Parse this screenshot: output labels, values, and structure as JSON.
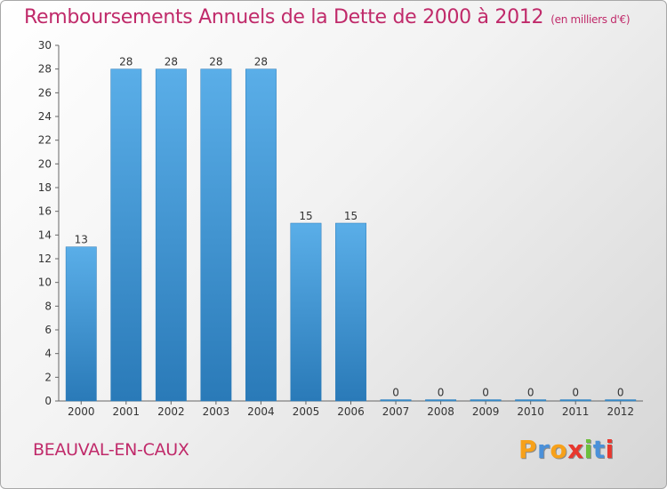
{
  "title": "Remboursements Annuels de la Dette de 2000 à 2012",
  "unit_note": "(en milliers d'€)",
  "commune": "BEAUVAL-EN-CAUX",
  "logo": {
    "text": "Proxiti",
    "letter_colors": [
      "#f7a11a",
      "#4a90d9",
      "#f7a11a",
      "#e8372e",
      "#6cbf3c",
      "#4a90d9",
      "#e8372e"
    ]
  },
  "colors": {
    "bar_top": "#5aaee8",
    "bar_bottom": "#2a7ab8",
    "accent": "#c02a6a"
  },
  "chart_data": {
    "type": "bar",
    "categories": [
      "2000",
      "2001",
      "2002",
      "2003",
      "2004",
      "2005",
      "2006",
      "2007",
      "2008",
      "2009",
      "2010",
      "2011",
      "2012"
    ],
    "values": [
      13,
      28,
      28,
      28,
      28,
      15,
      15,
      0,
      0,
      0,
      0,
      0,
      0
    ],
    "ylim": [
      0,
      30
    ],
    "yticks": [
      0,
      2,
      4,
      6,
      8,
      10,
      12,
      14,
      16,
      18,
      20,
      22,
      24,
      26,
      28,
      30
    ],
    "xlabel": "",
    "ylabel": "",
    "grid": false,
    "data_labels": true
  }
}
